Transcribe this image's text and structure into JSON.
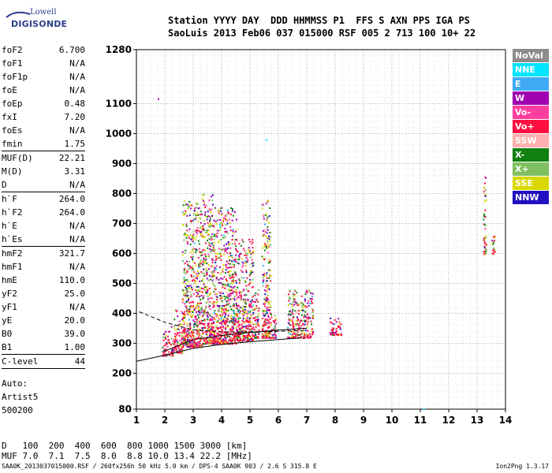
{
  "logo": {
    "line1": "Lowell",
    "line2": "DIGISONDE"
  },
  "header": {
    "line1": "Station YYYY DAY  DDD HHMMSS P1  FFS S AXN PPS IGA PS",
    "line2": "SaoLuis 2013 Feb06 037 015000 RSF 005 2 713 100 10+ 22"
  },
  "params": [
    [
      {
        "label": "foF2",
        "value": "6.700"
      },
      {
        "label": "foF1",
        "value": "N/A"
      },
      {
        "label": "foF1p",
        "value": "N/A"
      },
      {
        "label": "foE",
        "value": "N/A"
      },
      {
        "label": "foEp",
        "value": "0.48"
      },
      {
        "label": "fxI",
        "value": "7.20"
      },
      {
        "label": "foEs",
        "value": "N/A"
      },
      {
        "label": "fmin",
        "value": "1.75"
      }
    ],
    [
      {
        "label": "MUF(D)",
        "value": "22.21"
      },
      {
        "label": "M(D)",
        "value": "3.31"
      },
      {
        "label": "D",
        "value": "N/A"
      }
    ],
    [
      {
        "label": "h`F",
        "value": "264.0"
      },
      {
        "label": "h`F2",
        "value": "264.0"
      },
      {
        "label": "h`E",
        "value": "N/A"
      },
      {
        "label": "h`Es",
        "value": "N/A"
      }
    ],
    [
      {
        "label": "hmF2",
        "value": "321.7"
      },
      {
        "label": "hmF1",
        "value": "N/A"
      },
      {
        "label": "hmE",
        "value": "110.0"
      },
      {
        "label": "yF2",
        "value": "25.0"
      },
      {
        "label": "yF1",
        "value": "N/A"
      },
      {
        "label": "yE",
        "value": "20.0"
      },
      {
        "label": "B0",
        "value": "39.0"
      },
      {
        "label": "B1",
        "value": "1.00"
      }
    ],
    [
      {
        "label": "C-level",
        "value": "44"
      }
    ]
  ],
  "auto": {
    "line1": "Auto:",
    "line2": "Artist5",
    "line3": "500200"
  },
  "legend": [
    {
      "label": "NoVal",
      "color": "#8c8c8c"
    },
    {
      "label": "NNE",
      "color": "#00e5ff"
    },
    {
      "label": "E",
      "color": "#3fa9f5"
    },
    {
      "label": "W",
      "color": "#a000b0"
    },
    {
      "label": "Vo-",
      "color": "#ff3fa0"
    },
    {
      "label": "Vo+",
      "color": "#ff1040"
    },
    {
      "label": "SSW",
      "color": "#ffb0b0"
    },
    {
      "label": "X-",
      "color": "#108010"
    },
    {
      "label": "X+",
      "color": "#80c060"
    },
    {
      "label": "SSE",
      "color": "#d8d800"
    },
    {
      "label": "NNW",
      "color": "#2010c0"
    }
  ],
  "chart_data": {
    "type": "scatter",
    "xlim": [
      1,
      14
    ],
    "ylim": [
      80,
      1280
    ],
    "x_ticks": [
      1,
      2,
      3,
      4,
      5,
      6,
      7,
      8,
      9,
      10,
      11,
      12,
      13,
      14
    ],
    "y_ticks": [
      80,
      200,
      300,
      400,
      500,
      600,
      700,
      800,
      900,
      1000,
      1100,
      1280
    ],
    "grid": true,
    "echo_clusters": [
      {
        "f": [
          1.9,
          2.3
        ],
        "h": [
          260,
          360
        ]
      },
      {
        "f": [
          2.3,
          2.6
        ],
        "h": [
          270,
          420
        ]
      },
      {
        "f": [
          2.6,
          3.3
        ],
        "h": [
          290,
          780
        ]
      },
      {
        "f": [
          3.3,
          3.7
        ],
        "h": [
          300,
          800
        ]
      },
      {
        "f": [
          3.7,
          4.5
        ],
        "h": [
          300,
          760
        ]
      },
      {
        "f": [
          4.5,
          5.1
        ],
        "h": [
          310,
          650
        ]
      },
      {
        "f": [
          5.1,
          5.3
        ],
        "h": [
          320,
          480
        ]
      },
      {
        "f": [
          5.4,
          5.7
        ],
        "h": [
          320,
          780
        ]
      },
      {
        "f": [
          5.7,
          5.9
        ],
        "h": [
          320,
          400
        ]
      },
      {
        "f": [
          6.3,
          7.2
        ],
        "h": [
          320,
          480
        ]
      },
      {
        "f": [
          7.8,
          8.2
        ],
        "h": [
          330,
          390
        ]
      },
      {
        "f": [
          13.2,
          13.3
        ],
        "h": [
          600,
          860
        ]
      },
      {
        "f": [
          13.5,
          13.6
        ],
        "h": [
          600,
          660
        ]
      }
    ],
    "trace_lower": {
      "x": [
        1,
        1.9,
        3,
        4,
        5,
        6,
        6.8
      ],
      "y": [
        240,
        258,
        283,
        296,
        305,
        312,
        318
      ]
    },
    "trace_upper": {
      "x": [
        1.9,
        3,
        4,
        5,
        6,
        7
      ],
      "y": [
        270,
        312,
        326,
        336,
        344,
        350
      ]
    },
    "trace_dashed": {
      "x": [
        1.1,
        2,
        3,
        4,
        5,
        6,
        7
      ],
      "y": [
        405,
        370,
        345,
        338,
        338,
        340,
        343
      ]
    }
  },
  "dmuf": {
    "d_label": "D",
    "d_values": "100  200  400  600  800 1000 1500 3000 [km]",
    "m_label": "MUF",
    "m_values": "7.0  7.1  7.5  8.0  8.8 10.0 13.4 22.2 [MHz]"
  },
  "footer": {
    "left": "SAA0K_2013037015000.RSF / 260fx256h 50 kHz 5.0 km / DPS-4 SAA0K 903 / 2.6 S 315.8 E",
    "right": "Ion2Png 1.3.17"
  }
}
